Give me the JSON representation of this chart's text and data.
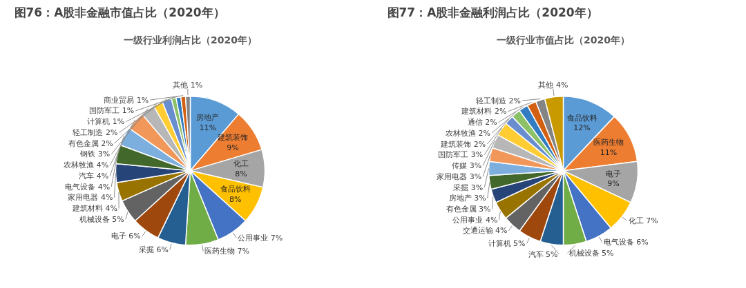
{
  "chart_data": [
    {
      "type": "pie",
      "title": "图76：A股非金融市值占比（2020年）",
      "subtitle": "一级行业利润占比（2020年）",
      "categories": [
        "房地产",
        "建筑装饰",
        "化工",
        "食品饮料",
        "公用事业",
        "医药生物",
        "采掘",
        "电子",
        "机械设备",
        "建筑材料",
        "家用电器",
        "电气设备",
        "汽车",
        "农林牧渔",
        "钢铁",
        "有色金属",
        "轻工制造",
        "计算机",
        "国防军工",
        "商业贸易",
        "其他"
      ],
      "values": [
        11,
        9,
        8,
        8,
        7,
        7,
        6,
        6,
        5,
        4,
        4,
        4,
        4,
        4,
        3,
        2,
        2,
        1,
        1,
        1,
        1
      ],
      "value_labels": [
        "11%",
        "9%",
        "8%",
        "8%",
        "7%",
        "7%",
        "6%",
        "6%",
        "5%",
        "4%",
        "4%",
        "4%",
        "4%",
        "4%",
        "3%",
        "2%",
        "2%",
        "1%",
        "1%",
        "1%",
        "1%"
      ],
      "colors": [
        "#5b9bd5",
        "#ed7d31",
        "#a5a5a5",
        "#ffc000",
        "#4472c4",
        "#70ad47",
        "#255e91",
        "#9e480e",
        "#636363",
        "#997300",
        "#264478",
        "#43682b",
        "#7cafdd",
        "#f1975a",
        "#b7b7b7",
        "#ffcd33",
        "#698ed0",
        "#8cc168",
        "#327dc2",
        "#d26012",
        "#848484"
      ]
    },
    {
      "type": "pie",
      "title": "图77：A股非金融利润占比（2020年）",
      "subtitle": "一级行业市值占比（2020年）",
      "categories": [
        "食品饮料",
        "医药生物",
        "电子",
        "化工",
        "电气设备",
        "机械设备",
        "汽车",
        "计算机",
        "交通运输",
        "公用事业",
        "有色金属",
        "房地产",
        "采掘",
        "家用电器",
        "传媒",
        "国防军工",
        "建筑装饰",
        "农林牧渔",
        "通信",
        "建筑材料",
        "轻工制造",
        "其他"
      ],
      "values": [
        12,
        11,
        9,
        7,
        6,
        5,
        5,
        5,
        4,
        4,
        3,
        3,
        3,
        3,
        3,
        3,
        2,
        2,
        2,
        2,
        2,
        4
      ],
      "value_labels": [
        "12%",
        "11%",
        "9%",
        "7%",
        "6%",
        "5%",
        "5%",
        "5%",
        "4%",
        "4%",
        "3%",
        "3%",
        "3%",
        "3%",
        "3%",
        "3%",
        "2%",
        "2%",
        "2%",
        "2%",
        "2%",
        "4%"
      ],
      "colors": [
        "#5b9bd5",
        "#ed7d31",
        "#a5a5a5",
        "#ffc000",
        "#4472c4",
        "#70ad47",
        "#255e91",
        "#9e480e",
        "#636363",
        "#997300",
        "#264478",
        "#43682b",
        "#7cafdd",
        "#f1975a",
        "#b7b7b7",
        "#ffcd33",
        "#698ed0",
        "#8cc168",
        "#327dc2",
        "#d26012",
        "#848484",
        "#c89a00"
      ]
    }
  ]
}
